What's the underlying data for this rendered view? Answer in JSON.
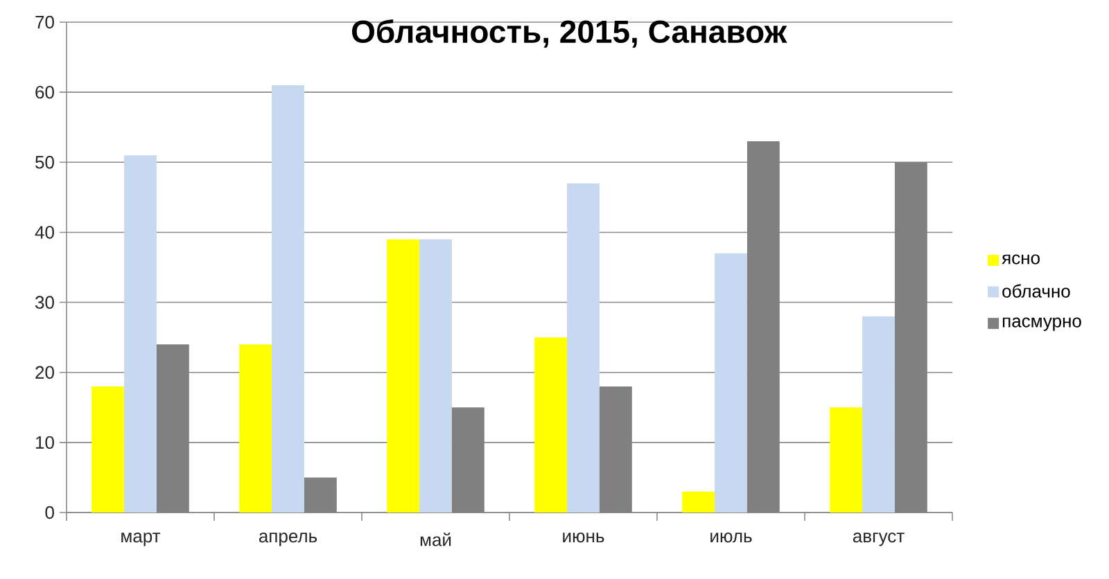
{
  "chart_data": {
    "type": "bar",
    "title": "Облачность, 2015, Санавож",
    "categories": [
      "март",
      "апрель",
      "май",
      "июнь",
      "июль",
      "август"
    ],
    "series": [
      {
        "name": "ясно",
        "color": "#ffff00",
        "values": [
          18,
          24,
          39,
          25,
          3,
          15
        ]
      },
      {
        "name": "облачно",
        "color": "#c6d9f1",
        "values": [
          51,
          61,
          39,
          47,
          37,
          28
        ]
      },
      {
        "name": "пасмурно",
        "color": "#808080",
        "values": [
          24,
          5,
          15,
          18,
          53,
          50
        ]
      }
    ],
    "ylim": [
      0,
      70
    ],
    "yticks": [
      0,
      10,
      20,
      30,
      40,
      50,
      60,
      70
    ],
    "grid": "y",
    "legend": "right"
  }
}
